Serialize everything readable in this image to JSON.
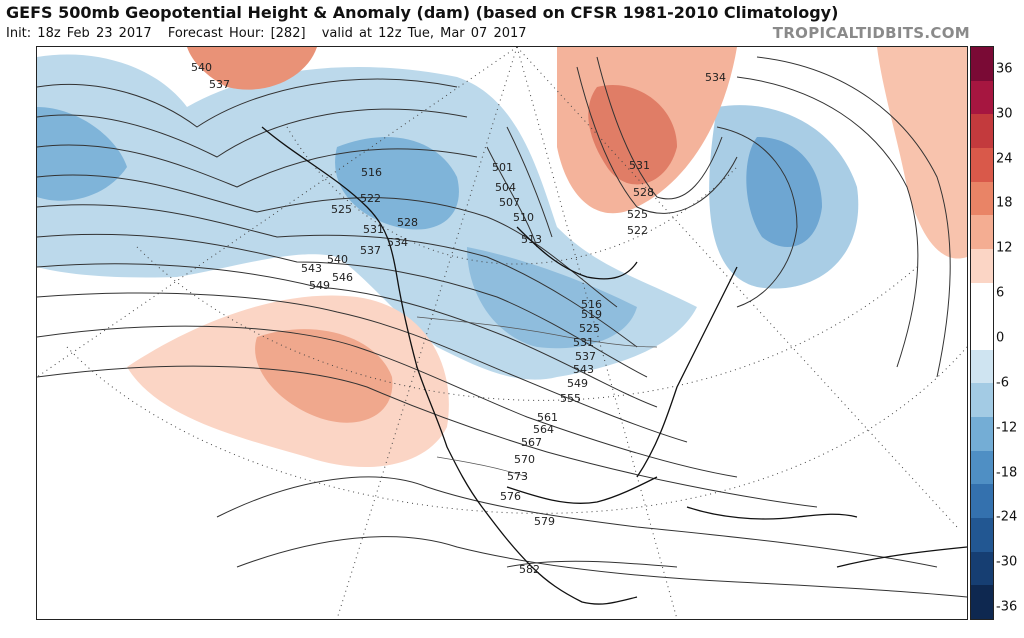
{
  "header": {
    "title": "GEFS 500mb Geopotential Height & Anomaly (dam) (based on CFSR 1981-2010 Climatology)",
    "init": "Init: 18z Feb 23 2017",
    "forecast_hour": "Forecast Hour: [282]",
    "valid": "valid at 12z Tue, Mar 07 2017",
    "brand": "TROPICALTIDBITS.COM"
  },
  "colorbar": {
    "ticks": [
      "36",
      "30",
      "24",
      "18",
      "12",
      "6",
      "0",
      "-6",
      "-12",
      "-18",
      "-24",
      "-30",
      "-36"
    ],
    "colors": [
      "#7a0a35",
      "#a61640",
      "#c33a3d",
      "#d9594a",
      "#e98466",
      "#f4ad92",
      "#fbd5c5",
      "#ffffff",
      "#ffffff",
      "#cfe4f1",
      "#a3cbe4",
      "#74add5",
      "#4f8fc4",
      "#3471ae",
      "#225792",
      "#163e72",
      "#0e2850"
    ]
  },
  "contours": [
    {
      "label": "540"
    },
    {
      "label": "537"
    },
    {
      "label": "534"
    },
    {
      "label": "516"
    },
    {
      "label": "522"
    },
    {
      "label": "525"
    },
    {
      "label": "528"
    },
    {
      "label": "531"
    },
    {
      "label": "534"
    },
    {
      "label": "537"
    },
    {
      "label": "540"
    },
    {
      "label": "543"
    },
    {
      "label": "546"
    },
    {
      "label": "549"
    },
    {
      "label": "501"
    },
    {
      "label": "504"
    },
    {
      "label": "507"
    },
    {
      "label": "510"
    },
    {
      "label": "513"
    },
    {
      "label": "531"
    },
    {
      "label": "528"
    },
    {
      "label": "525"
    },
    {
      "label": "522"
    },
    {
      "label": "516"
    },
    {
      "label": "519"
    },
    {
      "label": "525"
    },
    {
      "label": "531"
    },
    {
      "label": "537"
    },
    {
      "label": "543"
    },
    {
      "label": "549"
    },
    {
      "label": "555"
    },
    {
      "label": "561"
    },
    {
      "label": "564"
    },
    {
      "label": "567"
    },
    {
      "label": "570"
    },
    {
      "label": "573"
    },
    {
      "label": "576"
    },
    {
      "label": "579"
    },
    {
      "label": "582"
    }
  ]
}
